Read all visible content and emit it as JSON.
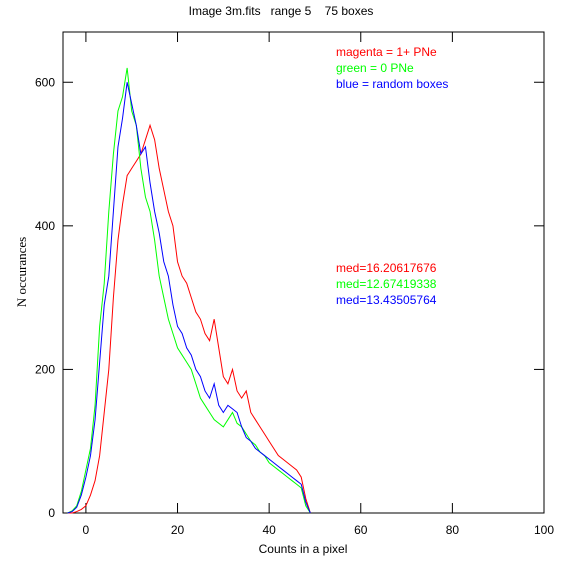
{
  "chart_data": {
    "type": "line",
    "title": "Image 3m.fits   range 5    75 boxes",
    "x_label": "Counts in a pixel",
    "y_label": "N occurances",
    "x": [
      -4,
      -3,
      -2,
      -1,
      0,
      1,
      2,
      3,
      4,
      5,
      6,
      7,
      8,
      9,
      10,
      11,
      12,
      13,
      14,
      15,
      16,
      17,
      18,
      19,
      20,
      21,
      22,
      23,
      24,
      25,
      26,
      27,
      28,
      29,
      30,
      31,
      32,
      33,
      34,
      35,
      36,
      37,
      38,
      39,
      40,
      41,
      42,
      43,
      44,
      45,
      46,
      47,
      48,
      49
    ],
    "series": [
      {
        "name": "magenta = 1+ PNe",
        "color": "#ff0000",
        "values": [
          0,
          0,
          2,
          5,
          10,
          25,
          45,
          80,
          140,
          200,
          300,
          380,
          430,
          470,
          480,
          490,
          500,
          520,
          540,
          520,
          480,
          450,
          420,
          400,
          350,
          330,
          320,
          300,
          280,
          270,
          250,
          240,
          270,
          230,
          190,
          180,
          200,
          170,
          160,
          170,
          140,
          130,
          120,
          110,
          100,
          90,
          80,
          75,
          70,
          65,
          60,
          50,
          20,
          0
        ]
      },
      {
        "name": "green = 0 PNe",
        "color": "#00ff00",
        "values": [
          0,
          3,
          10,
          30,
          60,
          90,
          150,
          260,
          320,
          420,
          500,
          560,
          580,
          620,
          560,
          540,
          480,
          440,
          420,
          380,
          330,
          300,
          270,
          250,
          230,
          220,
          210,
          200,
          180,
          160,
          150,
          140,
          130,
          125,
          120,
          130,
          140,
          125,
          120,
          110,
          100,
          95,
          85,
          80,
          70,
          65,
          60,
          55,
          50,
          45,
          40,
          35,
          10,
          0
        ]
      },
      {
        "name": "blue = random boxes",
        "color": "#0000ff",
        "values": [
          0,
          2,
          8,
          25,
          50,
          80,
          130,
          210,
          290,
          330,
          420,
          510,
          550,
          600,
          570,
          540,
          500,
          510,
          460,
          420,
          390,
          350,
          330,
          290,
          260,
          250,
          230,
          220,
          200,
          190,
          170,
          160,
          180,
          150,
          140,
          150,
          145,
          140,
          120,
          105,
          100,
          90,
          85,
          80,
          75,
          70,
          65,
          60,
          55,
          50,
          45,
          40,
          15,
          0
        ]
      }
    ],
    "annotations": [
      {
        "text": "med=16.20617676",
        "color": "#ff0000"
      },
      {
        "text": "med=12.67419338",
        "color": "#00ff00"
      },
      {
        "text": "med=13.43505764",
        "color": "#0000ff"
      }
    ],
    "xlim": [
      -5,
      100
    ],
    "xticks": [
      0,
      20,
      40,
      60,
      80,
      100
    ],
    "ylim": [
      0,
      670
    ],
    "yticks": [
      0,
      200,
      400,
      600
    ]
  }
}
